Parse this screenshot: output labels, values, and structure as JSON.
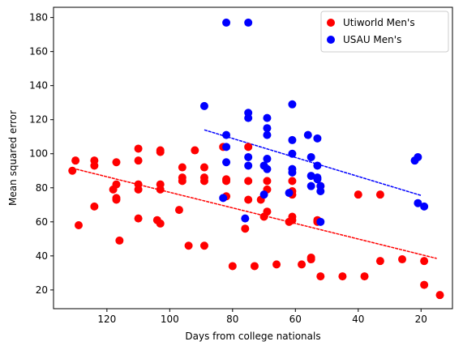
{
  "chart_data": {
    "type": "scatter",
    "xlabel": "Days from college nationals",
    "ylabel": "Mean squared error",
    "xlim": [
      137,
      10
    ],
    "ylim": [
      9,
      186
    ],
    "x_inverted": true,
    "x_ticks": [
      120,
      100,
      80,
      60,
      40,
      20
    ],
    "y_ticks": [
      20,
      40,
      60,
      80,
      100,
      120,
      140,
      160,
      180
    ],
    "grid": false,
    "legend_position": "top-right",
    "series": [
      {
        "name": "Utiworld Men's",
        "color": "#ff0000",
        "points": [
          [
            131,
            90
          ],
          [
            130,
            96
          ],
          [
            129,
            58
          ],
          [
            124,
            93
          ],
          [
            124,
            96
          ],
          [
            124,
            69
          ],
          [
            118,
            79
          ],
          [
            117,
            73
          ],
          [
            117,
            74
          ],
          [
            117,
            82
          ],
          [
            117,
            95
          ],
          [
            116,
            49
          ],
          [
            110,
            103
          ],
          [
            110,
            96
          ],
          [
            110,
            82
          ],
          [
            110,
            79
          ],
          [
            110,
            62
          ],
          [
            104,
            61
          ],
          [
            103,
            59
          ],
          [
            103,
            101
          ],
          [
            103,
            102
          ],
          [
            103,
            82
          ],
          [
            103,
            79
          ],
          [
            97,
            67
          ],
          [
            96,
            92
          ],
          [
            96,
            86
          ],
          [
            96,
            84
          ],
          [
            94,
            46
          ],
          [
            92,
            102
          ],
          [
            89,
            46
          ],
          [
            89,
            92
          ],
          [
            89,
            86
          ],
          [
            89,
            84
          ],
          [
            83,
            104
          ],
          [
            82,
            75
          ],
          [
            82,
            84
          ],
          [
            82,
            85
          ],
          [
            80,
            34
          ],
          [
            76,
            56
          ],
          [
            75,
            104
          ],
          [
            75,
            84
          ],
          [
            75,
            73
          ],
          [
            73,
            34
          ],
          [
            71,
            73
          ],
          [
            70,
            63
          ],
          [
            69,
            84
          ],
          [
            69,
            79
          ],
          [
            69,
            66
          ],
          [
            66,
            35
          ],
          [
            62,
            60
          ],
          [
            61,
            61
          ],
          [
            61,
            63
          ],
          [
            61,
            76
          ],
          [
            61,
            78
          ],
          [
            61,
            84
          ],
          [
            58,
            35
          ],
          [
            55,
            38
          ],
          [
            55,
            39
          ],
          [
            53,
            61
          ],
          [
            53,
            60
          ],
          [
            52,
            81
          ],
          [
            52,
            28
          ],
          [
            45,
            28
          ],
          [
            40,
            76
          ],
          [
            38,
            28
          ],
          [
            33,
            37
          ],
          [
            33,
            76
          ],
          [
            26,
            38
          ],
          [
            19,
            37
          ],
          [
            19,
            23
          ],
          [
            14,
            17
          ]
        ],
        "trendline": [
          [
            131,
            91.5
          ],
          [
            15,
            38.5
          ]
        ]
      },
      {
        "name": "USAU Men's",
        "color": "#0000ff",
        "points": [
          [
            89,
            128
          ],
          [
            82,
            177
          ],
          [
            82,
            111
          ],
          [
            82,
            104
          ],
          [
            82,
            95
          ],
          [
            83,
            74
          ],
          [
            75,
            177
          ],
          [
            75,
            124
          ],
          [
            75,
            121
          ],
          [
            75,
            98
          ],
          [
            75,
            93
          ],
          [
            76,
            62
          ],
          [
            69,
            121
          ],
          [
            69,
            115
          ],
          [
            69,
            111
          ],
          [
            69,
            97
          ],
          [
            70,
            93
          ],
          [
            70,
            76
          ],
          [
            69,
            91
          ],
          [
            62,
            77
          ],
          [
            61,
            129
          ],
          [
            61,
            108
          ],
          [
            61,
            100
          ],
          [
            61,
            91
          ],
          [
            61,
            89
          ],
          [
            56,
            111
          ],
          [
            55,
            98
          ],
          [
            55,
            87
          ],
          [
            55,
            81
          ],
          [
            53,
            109
          ],
          [
            53,
            93
          ],
          [
            53,
            86
          ],
          [
            53,
            85
          ],
          [
            52,
            81
          ],
          [
            52,
            78
          ],
          [
            52,
            60
          ],
          [
            22,
            96
          ],
          [
            21,
            98
          ],
          [
            21,
            71
          ],
          [
            19,
            69
          ]
        ],
        "trendline": [
          [
            89,
            114
          ],
          [
            20,
            75.5
          ]
        ]
      }
    ]
  }
}
